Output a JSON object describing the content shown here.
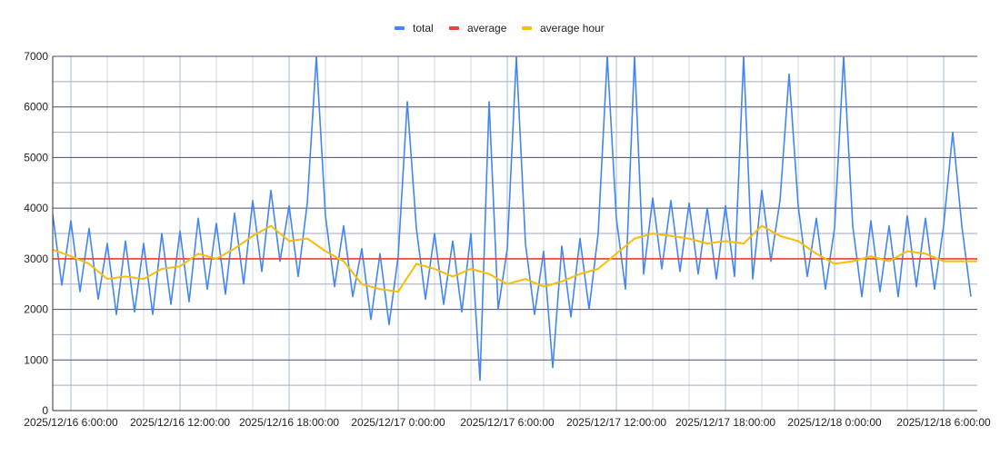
{
  "chart_data": {
    "type": "line",
    "title": "",
    "xlabel": "",
    "ylabel": "",
    "ylim": [
      0,
      7000
    ],
    "y_ticks": [
      "0",
      "1000",
      "2000",
      "3000",
      "4000",
      "5000",
      "6000",
      "7000"
    ],
    "y_tick_values": [
      0,
      1000,
      2000,
      3000,
      4000,
      5000,
      6000,
      7000
    ],
    "x_range_hours_from_2025_12_16_0000": [
      5,
      55.85
    ],
    "x_ticks": [
      {
        "label": "2025/12/16 6:00:00",
        "hour": 6
      },
      {
        "label": "2025/12/16 12:00:00",
        "hour": 12
      },
      {
        "label": "2025/12/16 18:00:00",
        "hour": 18
      },
      {
        "label": "2025/12/17 0:00:00",
        "hour": 24
      },
      {
        "label": "2025/12/17 6:00:00",
        "hour": 30
      },
      {
        "label": "2025/12/17 12:00:00",
        "hour": 36
      },
      {
        "label": "2025/12/17 18:00:00",
        "hour": 42
      },
      {
        "label": "2025/12/18 0:00:00",
        "hour": 48
      },
      {
        "label": "2025/12/18 6:00:00",
        "hour": 54
      }
    ],
    "grid": true,
    "legend_position": "top-center",
    "series": [
      {
        "name": "total",
        "color": "#4285f4",
        "start_hour": 5,
        "step_hours": 0.5,
        "values": [
          3880,
          2480,
          3750,
          2350,
          3600,
          2200,
          3300,
          1900,
          3350,
          1950,
          3300,
          1900,
          3500,
          2100,
          3550,
          2150,
          3800,
          2400,
          3700,
          2300,
          3900,
          2500,
          4150,
          2750,
          4350,
          2950,
          4050,
          2650,
          4100,
          7000,
          3850,
          2450,
          3650,
          2250,
          3200,
          1800,
          3100,
          1700,
          3050,
          6100,
          3600,
          2200,
          3500,
          2100,
          3350,
          1950,
          3500,
          600,
          6100,
          2000,
          3200,
          7000,
          3300,
          1900,
          3150,
          850,
          3250,
          1850,
          3400,
          2000,
          3500,
          7000,
          3800,
          2400,
          7000,
          2700,
          4200,
          2800,
          4150,
          2750,
          4100,
          2700,
          4000,
          2600,
          4050,
          2650,
          7000,
          2600,
          4350,
          2950,
          4150,
          6650,
          4050,
          2650,
          3800,
          2400,
          3600,
          7000,
          3650,
          2250,
          3750,
          2350,
          3650,
          2250,
          3850,
          2450,
          3800,
          2400,
          3650,
          5500,
          3650,
          2250
        ]
      },
      {
        "name": "average",
        "color": "#ea4335",
        "start_hour": 5,
        "step_hours": 50.85,
        "values": [
          3000,
          3000
        ]
      },
      {
        "name": "average hour",
        "color": "#fbbc04",
        "start_hour": 5,
        "step_hours": 1,
        "values": [
          3180,
          3050,
          2900,
          2600,
          2650,
          2600,
          2800,
          2850,
          3100,
          3000,
          3200,
          3450,
          3650,
          3350,
          3400,
          3150,
          2950,
          2500,
          2400,
          2350,
          2900,
          2800,
          2650,
          2800,
          2700,
          2500,
          2600,
          2450,
          2550,
          2700,
          2800,
          3100,
          3400,
          3500,
          3450,
          3400,
          3300,
          3350,
          3300,
          3650,
          3450,
          3350,
          3100,
          2900,
          2950,
          3050,
          2950,
          3150,
          3100,
          2950,
          2950
        ]
      }
    ]
  }
}
